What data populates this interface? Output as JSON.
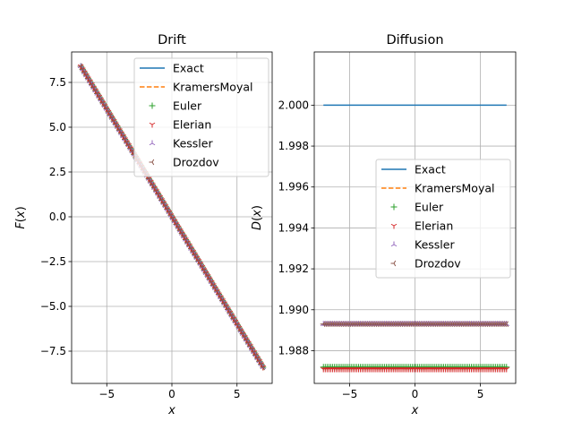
{
  "chart_data": [
    {
      "type": "scatter",
      "title": "Drift",
      "xlabel": "x",
      "ylabel": "F(x)",
      "xlim": [
        -7.7,
        7.7
      ],
      "ylim": [
        -9.3,
        9.2
      ],
      "xticks": [
        -5,
        0,
        5
      ],
      "xtick_labels": [
        "−5",
        "0",
        "5"
      ],
      "yticks": [
        -7.5,
        -5.0,
        -2.5,
        0.0,
        2.5,
        5.0,
        7.5
      ],
      "ytick_labels": [
        "−7.5",
        "−5.0",
        "−2.5",
        "0.0",
        "2.5",
        "5.0",
        "7.5"
      ],
      "grid": true,
      "legend_position": "top-right",
      "x_range": [
        -7,
        7
      ],
      "n_points": 100,
      "series": [
        {
          "name": "Exact",
          "style": "line",
          "color": "#1f77b4",
          "slope": -1.2,
          "intercept": 0
        },
        {
          "name": "KramersMoyal",
          "style": "dashed",
          "color": "#ff7f0e",
          "slope": -1.2,
          "intercept": 0
        },
        {
          "name": "Euler",
          "style": "plus",
          "color": "#2ca02c",
          "slope": -1.2,
          "intercept": 0
        },
        {
          "name": "Elerian",
          "style": "tri-down",
          "color": "#d62728",
          "slope": -1.2,
          "intercept": 0
        },
        {
          "name": "Kessler",
          "style": "tri-up",
          "color": "#9467bd",
          "slope": -1.2,
          "intercept": 0
        },
        {
          "name": "Drozdov",
          "style": "tri-left",
          "color": "#8c564b",
          "slope": -1.2,
          "intercept": 0
        }
      ]
    },
    {
      "type": "scatter",
      "title": "Diffusion",
      "xlabel": "x",
      "ylabel": "D(x)",
      "xlim": [
        -7.7,
        7.7
      ],
      "ylim": [
        1.9864,
        2.0026
      ],
      "xticks": [
        -5,
        0,
        5
      ],
      "xtick_labels": [
        "−5",
        "0",
        "5"
      ],
      "yticks": [
        1.988,
        1.99,
        1.992,
        1.994,
        1.996,
        1.998,
        2.0
      ],
      "ytick_labels": [
        "1.988",
        "1.990",
        "1.992",
        "1.994",
        "1.996",
        "1.998",
        "2.000"
      ],
      "grid": true,
      "legend_position": "center-right",
      "x_range": [
        -7,
        7
      ],
      "n_points": 100,
      "series": [
        {
          "name": "Exact",
          "style": "line",
          "color": "#1f77b4",
          "value": 2.0
        },
        {
          "name": "KramersMoyal",
          "style": "dashed",
          "color": "#ff7f0e",
          "value": 1.9893
        },
        {
          "name": "Euler",
          "style": "plus",
          "color": "#2ca02c",
          "value": 1.9872
        },
        {
          "name": "Elerian",
          "style": "tri-down",
          "color": "#d62728",
          "value": 1.9871
        },
        {
          "name": "Kessler",
          "style": "tri-up",
          "color": "#9467bd",
          "value": 1.9893
        },
        {
          "name": "Drozdov",
          "style": "tri-left",
          "color": "#8c564b",
          "value": 1.9893
        }
      ]
    }
  ]
}
